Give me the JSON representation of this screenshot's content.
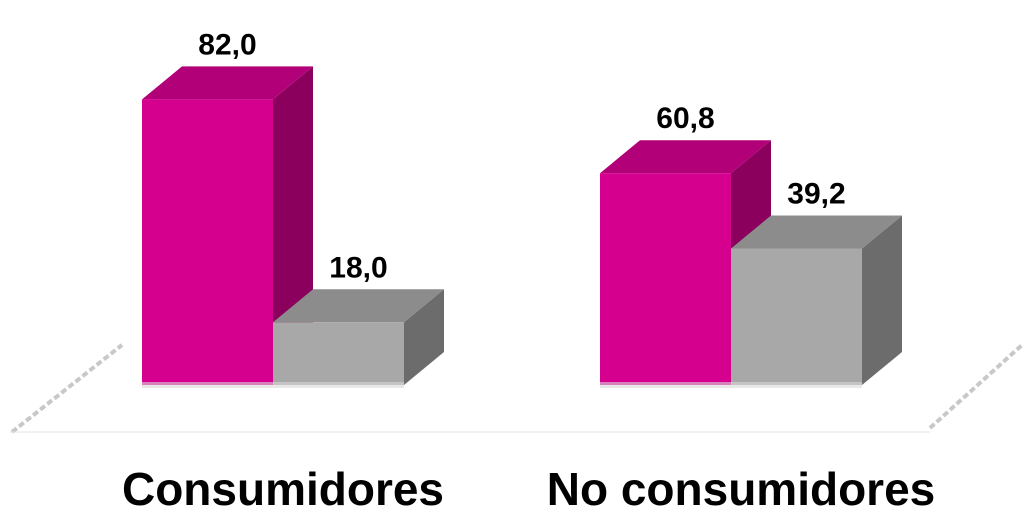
{
  "chart_data": {
    "type": "bar",
    "style": "3d-clustered",
    "categories": [
      "Consumidores",
      "No consumidores"
    ],
    "series": [
      {
        "values": [
          82.0,
          18.0
        ]
      },
      {
        "values": [
          60.8,
          39.2
        ]
      }
    ],
    "bar_values": [
      [
        82.0,
        18.0
      ],
      [
        60.8,
        39.2
      ]
    ],
    "value_labels": [
      [
        "82,0",
        "18,0"
      ],
      [
        "60,8",
        "39,2"
      ]
    ],
    "ylim": [
      0,
      100
    ],
    "grid": false,
    "colors": {
      "series_a_front": "#d6008f",
      "series_a_top": "#b20078",
      "series_a_side": "#8a005c",
      "series_b_front": "#a8a8a8",
      "series_b_top": "#8c8c8c",
      "series_b_side": "#6c6c6c",
      "floor_line": "#c8c8c8"
    }
  }
}
